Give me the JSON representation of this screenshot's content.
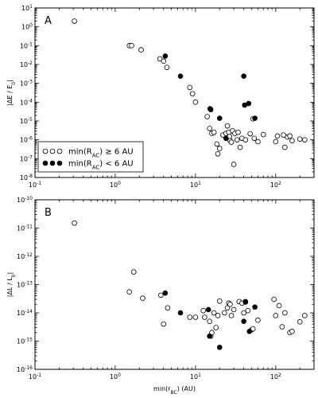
{
  "chart_data": [
    {
      "type": "scatter",
      "panel_label": "A",
      "ylabel": {
        "text": "|ΔE / E",
        "sub": "0",
        "tail": "|"
      },
      "xscale": "log",
      "yscale": "log",
      "xlim": [
        0.1,
        300
      ],
      "ylim": [
        1e-08,
        10
      ],
      "xticks": [
        {
          "v": 0.1,
          "base": "10",
          "exp": "-1"
        },
        {
          "v": 1,
          "base": "10",
          "exp": "0"
        },
        {
          "v": 10,
          "base": "10",
          "exp": "1"
        },
        {
          "v": 100,
          "base": "10",
          "exp": "2"
        }
      ],
      "yticks": [
        {
          "v": 1e-08,
          "base": "10",
          "exp": "-8"
        },
        {
          "v": 1e-07,
          "base": "10",
          "exp": "-7"
        },
        {
          "v": 1e-06,
          "base": "10",
          "exp": "-6"
        },
        {
          "v": 1e-05,
          "base": "10",
          "exp": "-5"
        },
        {
          "v": 0.0001,
          "base": "10",
          "exp": "-4"
        },
        {
          "v": 0.001,
          "base": "10",
          "exp": "-3"
        },
        {
          "v": 0.01,
          "base": "10",
          "exp": "-2"
        },
        {
          "v": 0.1,
          "base": "10",
          "exp": "-1"
        },
        {
          "v": 1,
          "base": "10",
          "exp": "0"
        },
        {
          "v": 10,
          "base": "10",
          "exp": "1"
        }
      ],
      "legend": {
        "placement": "lower-left",
        "entries": [
          {
            "marker": "open",
            "label_pre": "min(R",
            "label_sub": "AC",
            "label_post": ") ≥ 6 AU"
          },
          {
            "marker": "filled",
            "label_pre": "min(R",
            "label_sub": "AC",
            "label_post": ") < 6 AU"
          }
        ]
      },
      "series": [
        {
          "marker": "open",
          "points": [
            [
              0.31,
              2
            ],
            [
              1.5,
              0.1
            ],
            [
              1.6,
              0.1
            ],
            [
              2.1,
              0.06
            ],
            [
              3.6,
              0.02
            ],
            [
              4.0,
              0.015
            ],
            [
              4.4,
              0.007
            ],
            [
              8.5,
              0.0006
            ],
            [
              9.2,
              0.00028
            ],
            [
              10.0,
              0.0001
            ],
            [
              14.0,
              1.7e-05
            ],
            [
              15.0,
              4e-06
            ],
            [
              16.0,
              2.2e-06
            ],
            [
              17.0,
              2.5e-06
            ],
            [
              18.5,
              6e-07
            ],
            [
              19.0,
              1.8e-07
            ],
            [
              20.0,
              3.5e-07
            ],
            [
              22.0,
              1.8e-06
            ],
            [
              24.0,
              2.2e-06
            ],
            [
              25.0,
              5.5e-06
            ],
            [
              26.0,
              2.5e-06
            ],
            [
              26.5,
              1.5e-06
            ],
            [
              27.0,
              9e-07
            ],
            [
              28.0,
              7.5e-07
            ],
            [
              29.0,
              3e-06
            ],
            [
              30.0,
              5e-08
            ],
            [
              31.0,
              2.2e-06
            ],
            [
              33.0,
              1e-06
            ],
            [
              34.0,
              2.5e-06
            ],
            [
              36.0,
              4e-07
            ],
            [
              38.0,
              1.2e-06
            ],
            [
              42.0,
              1e-06
            ],
            [
              48.0,
              2.1e-06
            ],
            [
              52.0,
              1.3e-05
            ],
            [
              54.0,
              1.2e-06
            ],
            [
              60.0,
              8e-07
            ],
            [
              70.0,
              1.9e-06
            ],
            [
              100.0,
              8e-07
            ],
            [
              105.0,
              1.6e-06
            ],
            [
              125.0,
              1.8e-06
            ],
            [
              130.0,
              4e-07
            ],
            [
              140.0,
              1.4e-06
            ],
            [
              150.0,
              1.6e-06
            ],
            [
              160.0,
              9e-07
            ],
            [
              200.0,
              1.1e-06
            ],
            [
              230.0,
              1e-06
            ]
          ]
        },
        {
          "marker": "filled",
          "points": [
            [
              4.2,
              0.028
            ],
            [
              6.5,
              0.0024
            ],
            [
              15.2,
              4.5e-05
            ],
            [
              15.5,
              4e-05
            ],
            [
              20.0,
              1.4e-05
            ],
            [
              24.0,
              1.2e-06
            ],
            [
              40.0,
              0.0024
            ],
            [
              41.0,
              7e-05
            ],
            [
              46.0,
              8.5e-05
            ],
            [
              55.0,
              1.4e-05
            ]
          ]
        }
      ]
    },
    {
      "type": "scatter",
      "panel_label": "B",
      "ylabel": {
        "text": "|ΔL / L",
        "sub": "0",
        "tail": "|"
      },
      "xlabel": {
        "text": "min(r",
        "sub": "BC",
        "tail": ") (AU)"
      },
      "xscale": "log",
      "yscale": "log",
      "xlim": [
        0.1,
        300
      ],
      "ylim": [
        1e-16,
        1e-10
      ],
      "xticks": [
        {
          "v": 0.1,
          "base": "10",
          "exp": "-1"
        },
        {
          "v": 1,
          "base": "10",
          "exp": "0"
        },
        {
          "v": 10,
          "base": "10",
          "exp": "1"
        },
        {
          "v": 100,
          "base": "10",
          "exp": "2"
        }
      ],
      "yticks": [
        {
          "v": 1e-16,
          "base": "10",
          "exp": "-16"
        },
        {
          "v": 1e-15,
          "base": "10",
          "exp": "-15"
        },
        {
          "v": 1e-14,
          "base": "10",
          "exp": "-14"
        },
        {
          "v": 1e-13,
          "base": "10",
          "exp": "-13"
        },
        {
          "v": 1e-12,
          "base": "10",
          "exp": "-12"
        },
        {
          "v": 1e-11,
          "base": "10",
          "exp": "-11"
        },
        {
          "v": 1e-10,
          "base": "10",
          "exp": "-10"
        }
      ],
      "series": [
        {
          "marker": "open",
          "points": [
            [
              0.31,
              1.5e-11
            ],
            [
              1.5,
              5.5e-14
            ],
            [
              1.7,
              2.8e-13
            ],
            [
              2.2,
              3.3e-14
            ],
            [
              3.7,
              4.2e-14
            ],
            [
              4.0,
              4e-15
            ],
            [
              4.5,
              1.5e-14
            ],
            [
              8.5,
              7e-15
            ],
            [
              10.0,
              7e-15
            ],
            [
              12.5,
              1.2e-14
            ],
            [
              13.0,
              7e-15
            ],
            [
              15.0,
              5e-15
            ],
            [
              15.5,
              1.5e-15
            ],
            [
              16.0,
              2e-15
            ],
            [
              17.0,
              1e-14
            ],
            [
              18.0,
              3e-15
            ],
            [
              19.0,
              8e-15
            ],
            [
              20.0,
              2.6e-14
            ],
            [
              23.0,
              1e-14
            ],
            [
              25.0,
              1.5e-14
            ],
            [
              26.0,
              2.2e-14
            ],
            [
              27.0,
              2e-14
            ],
            [
              28.0,
              8e-15
            ],
            [
              30.0,
              1.3e-14
            ],
            [
              35.0,
              2.5e-14
            ],
            [
              38.0,
              2.2e-14
            ],
            [
              40.0,
              1e-14
            ],
            [
              42.0,
              2.4e-14
            ],
            [
              45.0,
              1.2e-14
            ],
            [
              50.0,
              2.5e-15
            ],
            [
              52.0,
              2.7e-15
            ],
            [
              60.0,
              5.5e-15
            ],
            [
              95.0,
              3e-14
            ],
            [
              100.0,
              8e-15
            ],
            [
              110.0,
              1.8e-14
            ],
            [
              120.0,
              3.2e-15
            ],
            [
              130.0,
              1e-14
            ],
            [
              150.0,
              2e-15
            ],
            [
              160.0,
              2.2e-15
            ],
            [
              200.0,
              4.8e-15
            ],
            [
              230.0,
              8e-15
            ]
          ]
        },
        {
          "marker": "filled",
          "points": [
            [
              4.2,
              5e-14
            ],
            [
              6.5,
              1e-14
            ],
            [
              14.5,
              1.3e-14
            ],
            [
              15.0,
              1.5e-15
            ],
            [
              20.0,
              6e-16
            ],
            [
              40.0,
              5e-15
            ],
            [
              42.0,
              2.5e-14
            ],
            [
              47.0,
              2.2e-15
            ],
            [
              55.0,
              1.6e-14
            ]
          ]
        }
      ]
    }
  ]
}
